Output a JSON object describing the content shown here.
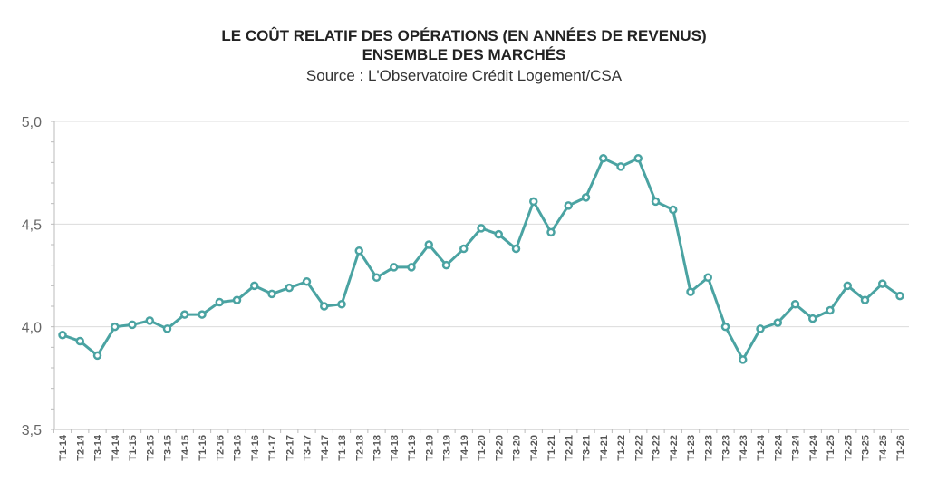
{
  "chart_data": {
    "type": "line",
    "title": "LE COÛT RELATIF DES OPÉRATIONS (EN ANNÉES DE REVENUS)",
    "subtitle": "ENSEMBLE DES MARCHÉS",
    "source": "Source : L'Observatoire Crédit Logement/CSA",
    "xlabel": "",
    "ylabel": "",
    "ylim": [
      3.5,
      5.0
    ],
    "yticks": [
      "3,5",
      "4,0",
      "4,5",
      "5,0"
    ],
    "ytick_values": [
      3.5,
      4.0,
      4.5,
      5.0
    ],
    "grid": true,
    "legend": "none",
    "color": "#4aa3a2",
    "categories": [
      "T1-14",
      "T2-14",
      "T3-14",
      "T4-14",
      "T1-15",
      "T2-15",
      "T3-15",
      "T4-15",
      "T1-16",
      "T2-16",
      "T3-16",
      "T4-16",
      "T1-17",
      "T2-17",
      "T3-17",
      "T4-17",
      "T1-18",
      "T2-18",
      "T3-18",
      "T4-18",
      "T1-19",
      "T2-19",
      "T3-19",
      "T4-19",
      "T1-20",
      "T2-20",
      "T3-20",
      "T4-20",
      "T1-21",
      "T2-21",
      "T3-21",
      "T4-21",
      "T1-22",
      "T2-22",
      "T3-22",
      "T4-22",
      "T1-23",
      "T2-23",
      "T3-23",
      "T4-23",
      "T1-24",
      "T2-24",
      "T3-24",
      "T4-24",
      "T1-25",
      "T2-25",
      "T3-25",
      "T4-25",
      "T1-26"
    ],
    "values": [
      3.96,
      3.93,
      3.86,
      4.0,
      4.01,
      4.03,
      3.99,
      4.06,
      4.06,
      4.12,
      4.13,
      4.2,
      4.16,
      4.19,
      4.22,
      4.1,
      4.11,
      4.37,
      4.24,
      4.29,
      4.29,
      4.4,
      4.3,
      4.38,
      4.48,
      4.45,
      4.38,
      4.61,
      4.46,
      4.59,
      4.63,
      4.82,
      4.78,
      4.82,
      4.61,
      4.57,
      4.17,
      4.24,
      4.0,
      3.84,
      3.99,
      4.02,
      4.11,
      4.04,
      4.08,
      4.2,
      4.13,
      4.21,
      4.15
    ]
  }
}
